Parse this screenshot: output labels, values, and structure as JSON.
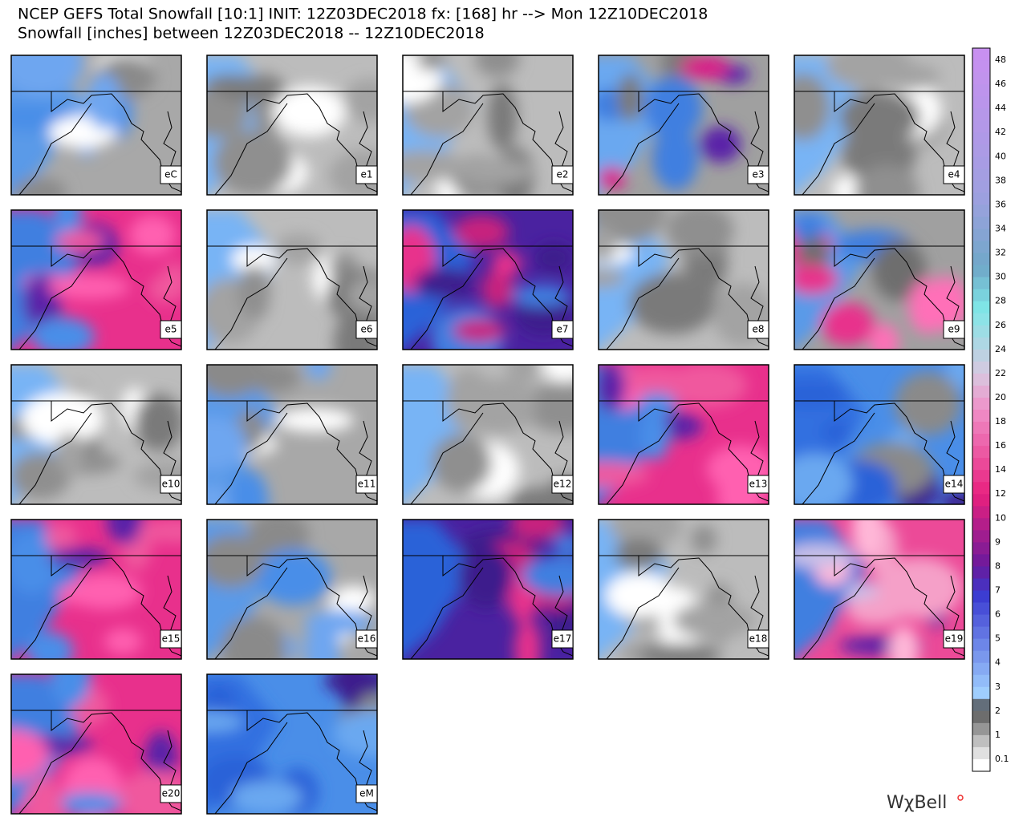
{
  "header": {
    "line1": "NCEP GEFS Total Snowfall [10:1] INIT: 12Z03DEC2018 fx: [168] hr --> Mon 12Z10DEC2018",
    "line2": "Snowfall [inches] between 12Z03DEC2018 -- 12Z10DEC2018"
  },
  "panels": [
    "eC",
    "e1",
    "e2",
    "e3",
    "e4",
    "e5",
    "e6",
    "e7",
    "e8",
    "e9",
    "e10",
    "e11",
    "e12",
    "e13",
    "e14",
    "e15",
    "e16",
    "e17",
    "e18",
    "e19",
    "e20",
    "eM"
  ],
  "colorbar": {
    "labels": [
      "48",
      "46",
      "44",
      "42",
      "40",
      "38",
      "36",
      "34",
      "32",
      "30",
      "28",
      "26",
      "24",
      "22",
      "20",
      "18",
      "16",
      "14",
      "12",
      "10",
      "9",
      "8",
      "7",
      "6",
      "5",
      "4",
      "3",
      "2",
      "1",
      "0.1"
    ]
  },
  "logo": "WχBell"
}
